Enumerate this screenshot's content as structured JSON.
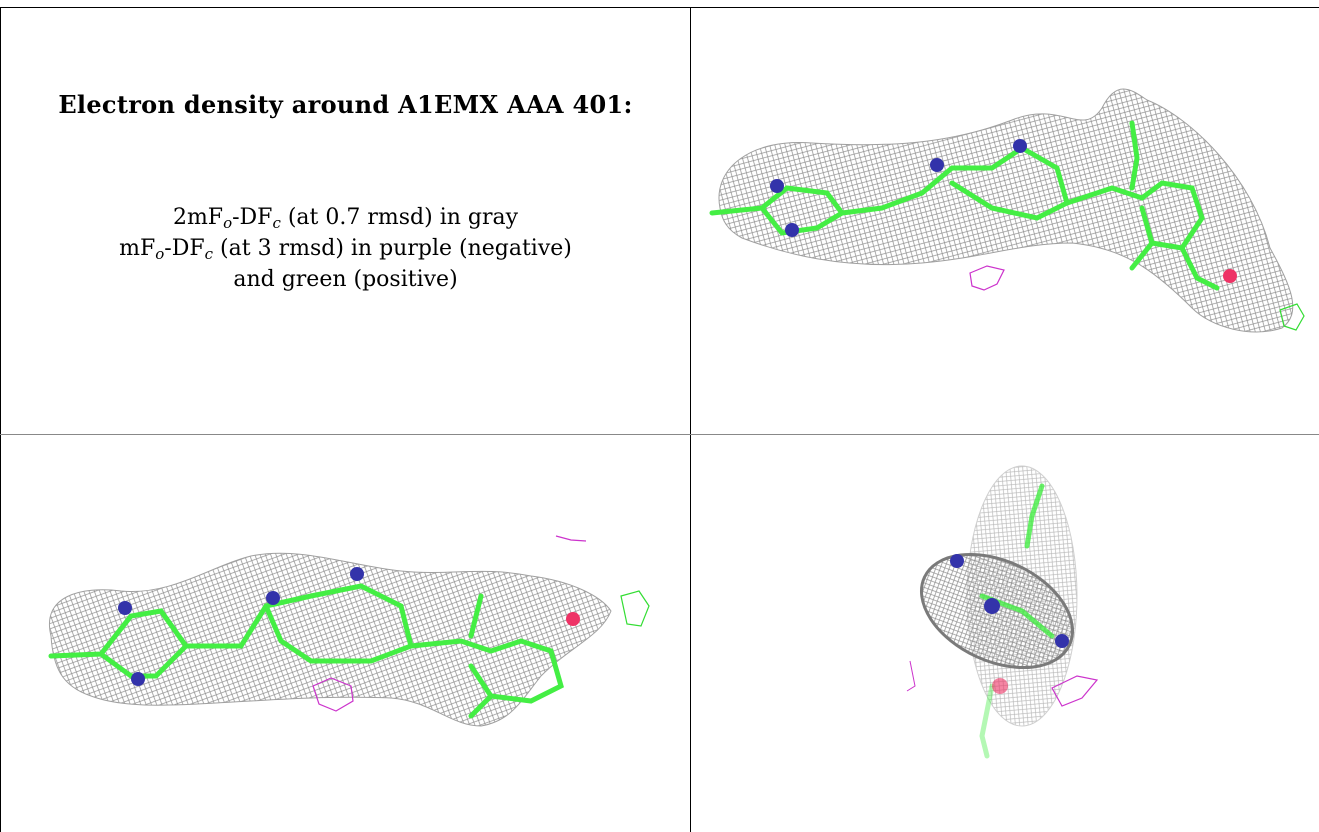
{
  "figure": {
    "title": "Electron density around A1EMX AAA 401:",
    "legend": {
      "line1": {
        "prefix": "2mF",
        "sub_o": "o",
        "mid": "-DF",
        "sub_c": "c",
        "suffix": " (at 0.7 rmsd) in gray"
      },
      "line2": {
        "prefix": "mF",
        "sub_o": "o",
        "mid": "-DF",
        "sub_c": "c",
        "suffix": " (at 3 rmsd) in purple (negative)"
      },
      "line3": "and green (positive)"
    },
    "colors": {
      "mesh_2fofc": "#9a9a9a",
      "mesh_negative": "#cc33cc",
      "mesh_positive": "#33dd33",
      "carbon": "#44ee44",
      "nitrogen": "#3333aa",
      "oxygen": "#ee3366"
    },
    "panels": [
      {
        "view": "top-view"
      },
      {
        "view": "side-view"
      },
      {
        "view": "end-view"
      }
    ]
  }
}
